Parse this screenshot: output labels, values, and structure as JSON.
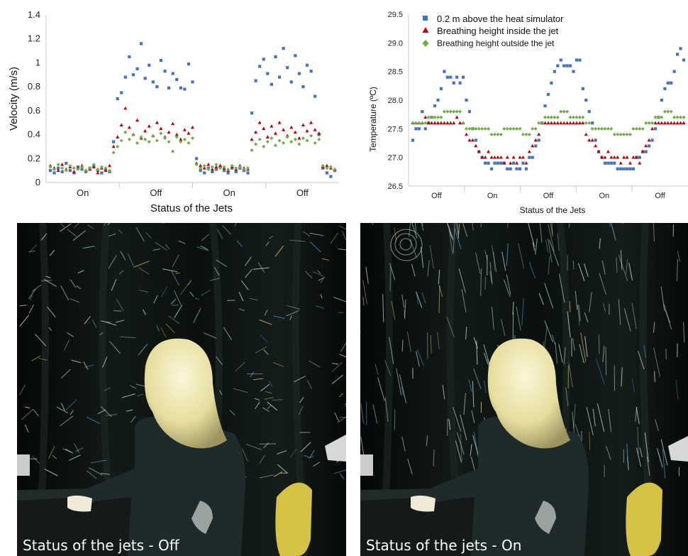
{
  "colors": {
    "series_blue": "#4472c4",
    "series_red": "#c00000",
    "series_green": "#70ad47",
    "photo_bg": "#0b1310",
    "streak": "#cfe0d8",
    "hair": "#f1ecc0",
    "sweater": "#1f2a2a"
  },
  "chart_data": [
    {
      "type": "scatter",
      "title": "",
      "xlabel": "Status of the Jets",
      "ylabel": "Velocity (m/s)",
      "ylim": [
        0,
        1.4
      ],
      "yticks": [
        "0",
        "0.2",
        "0.4",
        "0.6",
        "0.8",
        "1",
        "1.2",
        "1.4"
      ],
      "status_labels": [
        "On",
        "Off",
        "On",
        "Off"
      ],
      "segments": [
        [
          1,
          16
        ],
        [
          17,
          31
        ],
        [
          32,
          46
        ],
        [
          47,
          61
        ]
      ],
      "x_range": [
        1,
        61
      ],
      "legend": "none",
      "series": [
        {
          "marker": "square",
          "color": "#4472c4",
          "values": [
            0.1,
            0.08,
            0.12,
            0.09,
            0.16,
            0.1,
            0.08,
            0.13,
            0.11,
            0.09,
            0.12,
            0.14,
            0.1,
            0.08,
            0.11,
            0.09,
            0.34,
            0.7,
            0.75,
            0.88,
            1.05,
            0.9,
            0.95,
            1.16,
            0.87,
            0.98,
            0.84,
            0.8,
            1.02,
            0.93,
            0.79,
            0.91,
            0.86,
            0.79,
            0.78,
            0.99,
            0.84,
            0.2,
            0.1,
            0.08,
            0.12,
            0.09,
            0.11,
            0.13,
            0.1,
            0.08,
            0.12,
            0.09,
            0.12,
            0.1,
            0.08,
            0.58,
            0.85,
            0.97,
            1.03,
            0.91,
            0.82,
            1.05,
            0.88,
            1.12,
            0.96,
            0.84,
            1.06,
            0.91,
            0.8,
            0.98,
            0.93,
            0.72,
            0.4,
            0.12,
            0.08,
            0.05,
            0.1
          ]
        },
        {
          "marker": "triangle",
          "color": "#c00000",
          "values": [
            0.14,
            0.12,
            0.1,
            0.15,
            0.11,
            0.13,
            0.09,
            0.12,
            0.14,
            0.1,
            0.11,
            0.13,
            0.08,
            0.12,
            0.1,
            0.14,
            0.3,
            0.38,
            0.48,
            0.62,
            0.46,
            0.4,
            0.52,
            0.37,
            0.43,
            0.47,
            0.39,
            0.5,
            0.45,
            0.38,
            0.42,
            0.49,
            0.4,
            0.36,
            0.44,
            0.41,
            0.46,
            0.16,
            0.14,
            0.12,
            0.15,
            0.11,
            0.13,
            0.14,
            0.12,
            0.1,
            0.13,
            0.11,
            0.14,
            0.12,
            0.11,
            0.36,
            0.42,
            0.5,
            0.45,
            0.38,
            0.47,
            0.41,
            0.5,
            0.44,
            0.39,
            0.46,
            0.42,
            0.37,
            0.48,
            0.43,
            0.5,
            0.44,
            0.41,
            0.13,
            0.14,
            0.12,
            0.11
          ]
        },
        {
          "marker": "diamond",
          "color": "#70ad47",
          "values": [
            0.13,
            0.11,
            0.15,
            0.12,
            0.1,
            0.14,
            0.12,
            0.11,
            0.13,
            0.1,
            0.12,
            0.15,
            0.11,
            0.13,
            0.12,
            0.1,
            0.25,
            0.3,
            0.35,
            0.42,
            0.36,
            0.4,
            0.33,
            0.38,
            0.36,
            0.34,
            0.39,
            0.35,
            0.41,
            0.37,
            0.34,
            0.26,
            0.38,
            0.34,
            0.36,
            0.33,
            0.37,
            0.15,
            0.12,
            0.14,
            0.11,
            0.13,
            0.15,
            0.12,
            0.13,
            0.11,
            0.14,
            0.12,
            0.13,
            0.11,
            0.12,
            0.27,
            0.32,
            0.36,
            0.3,
            0.34,
            0.37,
            0.31,
            0.35,
            0.33,
            0.38,
            0.34,
            0.36,
            0.32,
            0.37,
            0.35,
            0.39,
            0.33,
            0.36,
            0.14,
            0.12,
            0.13,
            0.11
          ]
        }
      ]
    },
    {
      "type": "scatter",
      "title": "",
      "xlabel": "Status of the Jets",
      "ylabel": "Temperature (ºC)",
      "ylim": [
        26.5,
        29.5
      ],
      "yticks": [
        "26.5",
        "27.0",
        "27.5",
        "28.0",
        "28.5",
        "29.0",
        "29.5"
      ],
      "status_labels": [
        "Off",
        "On",
        "Off",
        "On",
        "Off"
      ],
      "legend": "top-left",
      "series": [
        {
          "name": "0.2 m above the heat simulator",
          "marker": "square",
          "color": "#4472c4",
          "values": [
            27.3,
            27.5,
            27.5,
            27.8,
            27.5,
            27.6,
            27.7,
            27.9,
            28.0,
            28.2,
            28.5,
            28.4,
            28.4,
            28.3,
            28.4,
            28.3,
            28.4,
            28.0,
            27.8,
            27.5,
            27.3,
            27.1,
            27.0,
            26.9,
            26.9,
            26.8,
            26.9,
            26.9,
            26.9,
            26.9,
            26.8,
            26.8,
            26.9,
            26.8,
            26.8,
            26.9,
            26.8,
            27.0,
            27.0,
            27.2,
            27.3,
            27.6,
            27.9,
            28.1,
            28.3,
            28.5,
            28.6,
            28.7,
            28.6,
            28.6,
            28.6,
            28.5,
            28.7,
            28.7,
            28.2,
            28.0,
            27.8,
            27.6,
            27.3,
            27.1,
            27.0,
            26.9,
            26.9,
            26.9,
            26.9,
            26.8,
            26.8,
            26.8,
            26.8,
            26.8,
            26.8,
            27.0,
            27.0,
            27.1,
            27.1,
            27.2,
            27.3,
            27.5,
            27.7,
            28.0,
            28.2,
            28.3,
            28.3,
            28.5,
            28.8,
            28.9,
            28.7
          ]
        },
        {
          "name": "Breathing height inside the jet",
          "marker": "triangle",
          "color": "#c00000",
          "values": [
            27.6,
            27.6,
            27.6,
            27.6,
            27.7,
            27.6,
            27.6,
            27.6,
            27.6,
            27.6,
            27.6,
            27.6,
            27.6,
            27.6,
            27.7,
            27.6,
            27.6,
            27.4,
            27.3,
            27.3,
            27.2,
            27.1,
            27.0,
            27.0,
            27.1,
            27.0,
            27.0,
            27.0,
            27.0,
            26.9,
            27.0,
            26.9,
            27.0,
            26.9,
            27.0,
            27.0,
            26.9,
            27.1,
            27.2,
            27.3,
            27.4,
            27.6,
            27.6,
            27.6,
            27.6,
            27.6,
            27.6,
            27.6,
            27.6,
            27.6,
            27.6,
            27.6,
            27.6,
            27.6,
            27.6,
            27.4,
            27.3,
            27.3,
            27.2,
            27.1,
            27.0,
            27.0,
            27.1,
            27.0,
            27.0,
            27.0,
            26.9,
            27.0,
            27.0,
            26.9,
            27.0,
            27.0,
            26.9,
            27.1,
            27.2,
            27.3,
            27.5,
            27.6,
            27.6,
            27.6,
            27.6,
            27.6,
            27.6,
            27.6,
            27.6,
            27.6,
            27.6
          ]
        },
        {
          "name": "Breathing height outside the jet",
          "marker": "diamond",
          "color": "#70ad47",
          "values": [
            27.6,
            27.6,
            27.6,
            27.6,
            27.6,
            27.7,
            27.7,
            27.7,
            27.7,
            27.7,
            27.8,
            27.8,
            27.8,
            27.8,
            27.8,
            27.8,
            27.6,
            27.5,
            27.5,
            27.5,
            27.5,
            27.5,
            27.5,
            27.5,
            27.5,
            27.4,
            27.4,
            27.4,
            27.4,
            27.5,
            27.5,
            27.5,
            27.5,
            27.5,
            27.5,
            27.4,
            27.4,
            27.4,
            27.5,
            27.5,
            27.6,
            27.6,
            27.7,
            27.7,
            27.7,
            27.7,
            27.7,
            27.8,
            27.8,
            27.8,
            27.7,
            27.7,
            27.7,
            27.7,
            27.7,
            27.6,
            27.6,
            27.5,
            27.5,
            27.5,
            27.5,
            27.5,
            27.5,
            27.5,
            27.4,
            27.4,
            27.4,
            27.4,
            27.4,
            27.4,
            27.5,
            27.5,
            27.5,
            27.5,
            27.6,
            27.6,
            27.6,
            27.7,
            27.7,
            27.7,
            27.8,
            27.8,
            27.8,
            27.7,
            27.7,
            27.7,
            27.7
          ]
        }
      ]
    }
  ],
  "photos": [
    {
      "caption": "Status of the jets - Off"
    },
    {
      "caption": "Status of the jets - On"
    }
  ]
}
